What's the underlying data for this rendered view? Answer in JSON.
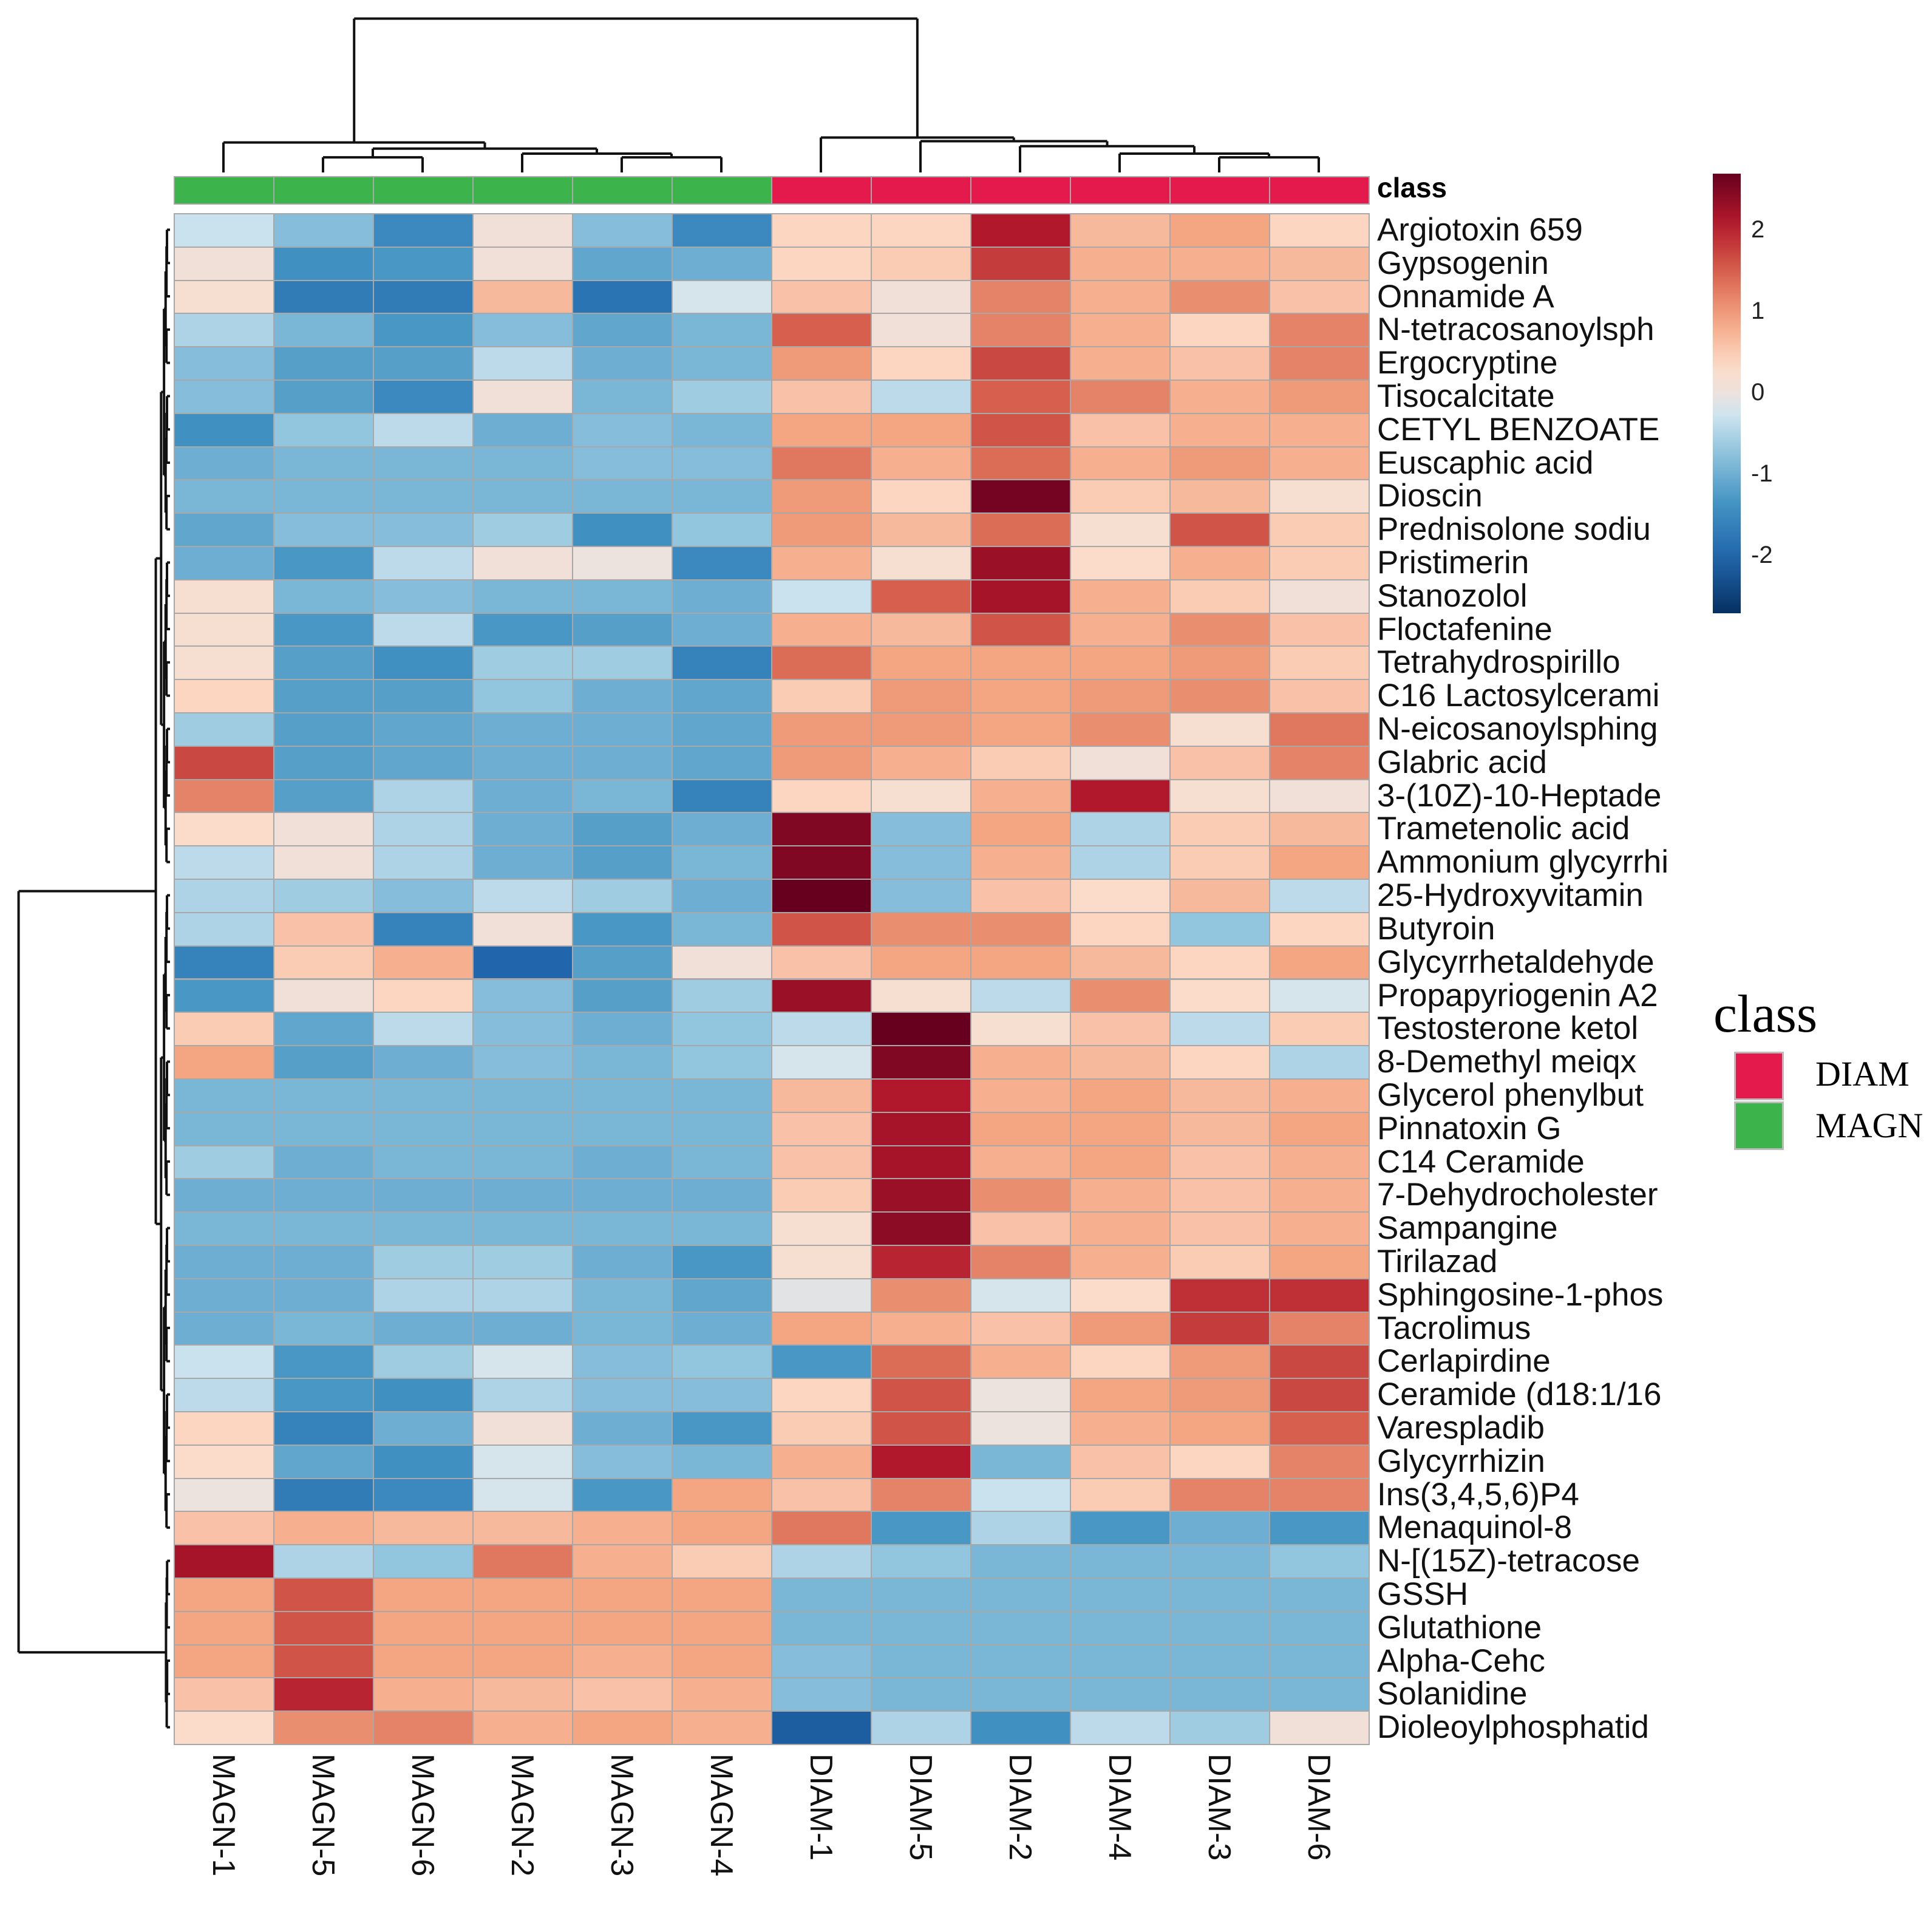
{
  "chart_data": {
    "type": "heatmap",
    "title": "",
    "columns": [
      "MAGN-1",
      "MAGN-5",
      "MAGN-6",
      "MAGN-2",
      "MAGN-3",
      "MAGN-4",
      "DIAM-1",
      "DIAM-5",
      "DIAM-2",
      "DIAM-4",
      "DIAM-3",
      "DIAM-6"
    ],
    "column_class": [
      "MAGN",
      "MAGN",
      "MAGN",
      "MAGN",
      "MAGN",
      "MAGN",
      "DIAM",
      "DIAM",
      "DIAM",
      "DIAM",
      "DIAM",
      "DIAM"
    ],
    "class_annotation_label": "class",
    "rows": [
      "Argiotoxin 659",
      "Gypsogenin",
      "Onnamide A",
      "N-tetracosanoylsph",
      "Ergocryptine",
      "Tisocalcitate",
      "CETYL BENZOATE",
      "Euscaphic acid",
      "Dioscin",
      "Prednisolone sodiu",
      "Pristimerin",
      "Stanozolol",
      "Floctafenine",
      "Tetrahydrospirillo",
      "C16 Lactosylcerami",
      "N-eicosanoylsphing",
      "Glabric acid",
      "3-(10Z)-10-Heptade",
      "Trametenolic acid",
      "Ammonium glycyrrhi",
      "25-Hydroxyvitamin",
      "Butyroin",
      "Glycyrrhetaldehyde",
      "Propapyriogenin A2",
      "Testosterone ketol",
      "8-Demethyl meiqx",
      "Glycerol phenylbut",
      "Pinnatoxin G",
      "C14 Ceramide",
      "7-Dehydrocholester",
      "Sampangine",
      "Tirilazad",
      "Sphingosine-1-phos",
      "Tacrolimus",
      "Cerlapirdine",
      "Ceramide (d18:1/16",
      "Varespladib",
      "Glycyrrhizin",
      "Ins(3,4,5,6)P4",
      "Menaquinol-8",
      "N-[(15Z)-tetracose",
      "GSSH",
      "Glutathione",
      "Alpha-Cehc",
      "Solanidine",
      "Dioleoylphosphatid"
    ],
    "values": [
      [
        -0.3,
        -0.8,
        -1.5,
        0.1,
        -0.8,
        -1.5,
        0.4,
        0.4,
        2.1,
        0.7,
        0.9,
        0.4
      ],
      [
        0.1,
        -1.4,
        -1.3,
        0.1,
        -1.1,
        -1.0,
        0.4,
        0.5,
        1.8,
        0.8,
        0.8,
        0.7
      ],
      [
        0.2,
        -1.7,
        -1.7,
        0.7,
        -1.8,
        -0.2,
        0.6,
        0.1,
        1.2,
        0.8,
        1.1,
        0.6
      ],
      [
        -0.5,
        -0.9,
        -1.3,
        -0.8,
        -1.1,
        -0.9,
        1.5,
        0.1,
        1.2,
        0.8,
        0.4,
        1.2
      ],
      [
        -0.8,
        -1.2,
        -1.2,
        -0.4,
        -1.0,
        -0.9,
        1.0,
        0.4,
        1.7,
        0.8,
        0.6,
        1.2
      ],
      [
        -0.8,
        -1.2,
        -1.5,
        0.1,
        -0.9,
        -0.6,
        0.6,
        -0.4,
        1.5,
        1.2,
        0.8,
        1.0
      ],
      [
        -1.4,
        -0.7,
        -0.4,
        -1.0,
        -0.8,
        -0.9,
        0.9,
        0.9,
        1.6,
        0.6,
        0.8,
        0.8
      ],
      [
        -1.0,
        -0.9,
        -0.9,
        -0.9,
        -0.8,
        -0.8,
        1.3,
        0.8,
        1.4,
        0.8,
        1.0,
        0.8
      ],
      [
        -0.9,
        -0.9,
        -0.9,
        -0.9,
        -0.9,
        -0.9,
        1.0,
        0.4,
        2.6,
        0.5,
        0.7,
        0.2
      ],
      [
        -1.1,
        -0.8,
        -0.8,
        -0.6,
        -1.4,
        -0.7,
        1.0,
        0.7,
        1.4,
        0.2,
        1.6,
        0.5
      ],
      [
        -1.0,
        -1.3,
        -0.4,
        0.1,
        0.0,
        -1.5,
        0.8,
        0.2,
        2.3,
        0.3,
        0.8,
        0.5
      ],
      [
        0.2,
        -0.9,
        -0.8,
        -0.9,
        -0.9,
        -1.0,
        -0.3,
        1.5,
        2.2,
        0.8,
        0.5,
        0.1
      ],
      [
        0.2,
        -1.3,
        -0.4,
        -1.3,
        -1.2,
        -1.0,
        0.8,
        0.7,
        1.6,
        0.8,
        1.1,
        0.6
      ],
      [
        0.2,
        -1.2,
        -1.4,
        -0.6,
        -0.6,
        -1.6,
        1.4,
        0.9,
        0.9,
        0.9,
        1.0,
        0.5
      ],
      [
        0.4,
        -1.2,
        -1.2,
        -0.7,
        -1.0,
        -1.1,
        0.5,
        1.0,
        0.9,
        1.0,
        1.1,
        0.6
      ],
      [
        -0.6,
        -1.2,
        -1.1,
        -1.0,
        -1.0,
        -1.1,
        1.0,
        1.0,
        0.9,
        1.1,
        0.2,
        1.3
      ],
      [
        1.7,
        -1.2,
        -1.1,
        -1.0,
        -1.0,
        -1.1,
        1.0,
        0.8,
        0.5,
        0.1,
        0.6,
        1.2
      ],
      [
        1.2,
        -1.2,
        -0.5,
        -1.0,
        -0.9,
        -1.6,
        0.4,
        0.2,
        0.8,
        2.1,
        0.2,
        0.1
      ],
      [
        0.3,
        0.1,
        -0.5,
        -1.0,
        -1.2,
        -1.0,
        2.5,
        -0.8,
        0.9,
        -0.5,
        0.5,
        0.7
      ],
      [
        -0.4,
        0.1,
        -0.5,
        -1.0,
        -1.2,
        -0.9,
        2.5,
        -0.8,
        0.8,
        -0.5,
        0.5,
        0.9
      ],
      [
        -0.5,
        -0.6,
        -0.8,
        -0.4,
        -0.6,
        -1.0,
        2.9,
        -0.8,
        0.6,
        0.3,
        0.7,
        -0.4
      ],
      [
        -0.5,
        0.6,
        -1.6,
        0.1,
        -1.3,
        -0.9,
        1.6,
        1.1,
        1.1,
        0.4,
        -0.7,
        0.4
      ],
      [
        -1.6,
        0.5,
        0.8,
        -2.0,
        -1.2,
        0.1,
        0.6,
        0.9,
        0.9,
        0.7,
        0.4,
        0.9
      ],
      [
        -1.3,
        0.1,
        0.4,
        -0.8,
        -1.2,
        -0.6,
        2.3,
        0.2,
        -0.4,
        1.1,
        0.3,
        -0.2
      ],
      [
        0.5,
        -1.1,
        -0.4,
        -0.8,
        -1.0,
        -0.7,
        -0.4,
        2.9,
        0.2,
        0.6,
        -0.4,
        0.5
      ],
      [
        0.9,
        -1.2,
        -1.0,
        -0.8,
        -0.9,
        -0.7,
        -0.2,
        2.5,
        0.8,
        0.7,
        0.4,
        -0.5
      ],
      [
        -0.9,
        -0.9,
        -0.9,
        -0.9,
        -0.9,
        -0.9,
        0.7,
        2.1,
        0.8,
        0.9,
        0.7,
        0.8
      ],
      [
        -0.9,
        -0.9,
        -0.9,
        -0.9,
        -0.9,
        -0.9,
        0.6,
        2.2,
        0.9,
        0.9,
        0.7,
        0.9
      ],
      [
        -0.6,
        -1.0,
        -0.9,
        -0.9,
        -1.0,
        -0.9,
        0.6,
        2.2,
        0.8,
        0.9,
        0.6,
        0.8
      ],
      [
        -1.0,
        -1.0,
        -1.0,
        -1.0,
        -1.0,
        -1.0,
        0.5,
        2.3,
        1.1,
        0.8,
        0.6,
        0.8
      ],
      [
        -0.9,
        -0.9,
        -0.9,
        -0.9,
        -0.9,
        -0.9,
        0.2,
        2.4,
        0.6,
        0.8,
        0.6,
        0.8
      ],
      [
        -1.0,
        -1.0,
        -0.6,
        -0.6,
        -1.0,
        -1.3,
        0.2,
        2.0,
        1.2,
        0.8,
        0.5,
        0.9
      ],
      [
        -1.0,
        -1.0,
        -0.5,
        -0.5,
        -0.9,
        -1.1,
        -0.1,
        1.1,
        -0.2,
        0.3,
        1.9,
        1.9
      ],
      [
        -1.0,
        -0.9,
        -1.0,
        -1.0,
        -0.9,
        -1.0,
        0.9,
        0.8,
        0.6,
        1.0,
        1.8,
        1.2
      ],
      [
        -0.3,
        -1.3,
        -0.6,
        -0.2,
        -0.8,
        -0.7,
        -1.3,
        1.4,
        0.8,
        0.4,
        1.0,
        1.7
      ],
      [
        -0.4,
        -1.3,
        -1.4,
        -0.5,
        -0.8,
        -0.8,
        0.4,
        1.6,
        0.0,
        0.9,
        1.0,
        1.7
      ],
      [
        0.4,
        -1.6,
        -1.0,
        0.1,
        -1.0,
        -1.3,
        0.5,
        1.6,
        0.0,
        0.8,
        0.9,
        1.5
      ],
      [
        0.3,
        -1.1,
        -1.4,
        -0.2,
        -0.8,
        -0.9,
        0.8,
        2.1,
        -0.9,
        0.6,
        0.4,
        1.2
      ],
      [
        0.0,
        -1.7,
        -1.5,
        -0.2,
        -1.3,
        0.9,
        0.6,
        1.2,
        -0.3,
        0.5,
        1.2,
        1.2
      ],
      [
        0.6,
        0.8,
        0.7,
        0.7,
        0.8,
        0.9,
        1.3,
        -1.3,
        -0.5,
        -1.3,
        -1.0,
        -1.3
      ],
      [
        2.2,
        -0.5,
        -0.7,
        1.3,
        0.8,
        0.5,
        -0.5,
        -0.7,
        -0.9,
        -0.9,
        -0.9,
        -0.7
      ],
      [
        0.9,
        1.6,
        0.9,
        0.9,
        0.9,
        0.9,
        -0.9,
        -0.9,
        -0.9,
        -0.9,
        -0.9,
        -0.9
      ],
      [
        0.9,
        1.6,
        0.9,
        0.9,
        0.9,
        0.9,
        -0.9,
        -0.9,
        -0.9,
        -0.9,
        -0.9,
        -0.9
      ],
      [
        0.9,
        1.6,
        0.9,
        0.9,
        0.8,
        0.9,
        -0.8,
        -0.9,
        -0.9,
        -0.9,
        -0.9,
        -0.9
      ],
      [
        0.6,
        2.0,
        0.8,
        0.7,
        0.6,
        0.8,
        -0.8,
        -0.9,
        -0.9,
        -0.9,
        -0.9,
        -0.9
      ],
      [
        0.3,
        1.1,
        1.2,
        0.8,
        0.9,
        0.8,
        -2.1,
        -0.5,
        -1.4,
        -0.4,
        -0.6,
        0.1
      ]
    ],
    "color_range": [
      -2.7,
      2.7
    ],
    "colorbar_ticks": [
      "2",
      "1",
      "0",
      "-1",
      "-2"
    ],
    "colorbar_tick_values": [
      2,
      1,
      0,
      -1,
      -2
    ],
    "legend": {
      "title": "class",
      "placement": "right",
      "entries": [
        {
          "label": "DIAM",
          "color": "#e31a4b"
        },
        {
          "label": "MAGN",
          "color": "#3cb44b"
        }
      ]
    }
  }
}
